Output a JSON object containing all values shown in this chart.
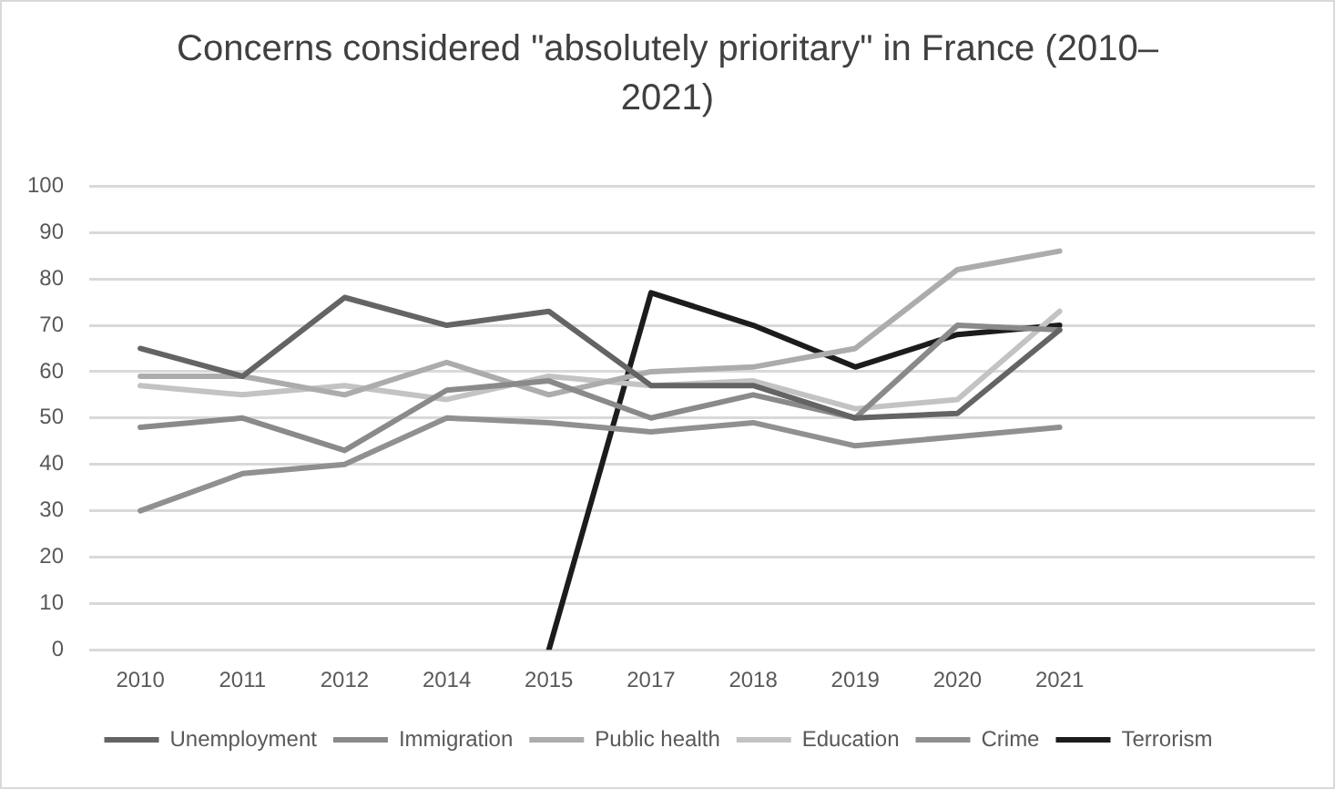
{
  "chart_data": {
    "type": "line",
    "title": "Concerns considered \"absolutely prioritary\" in France (2010–2021)",
    "categories": [
      "2010",
      "2011",
      "2012",
      "2014",
      "2015",
      "2017",
      "2018",
      "2019",
      "2020",
      "2021",
      null,
      null
    ],
    "series": [
      {
        "name": "Unemployment",
        "color": "#646464",
        "values": [
          65,
          59,
          76,
          70,
          73,
          57,
          57,
          50,
          51,
          69,
          null,
          null
        ]
      },
      {
        "name": "Immigration",
        "color": "#8a8a8a",
        "values": [
          48,
          50,
          43,
          56,
          58,
          50,
          55,
          50,
          70,
          69,
          null,
          null
        ]
      },
      {
        "name": "Public health",
        "color": "#acacac",
        "values": [
          59,
          59,
          55,
          62,
          55,
          60,
          61,
          65,
          82,
          86,
          null,
          null
        ]
      },
      {
        "name": "Education",
        "color": "#c3c3c3",
        "values": [
          57,
          55,
          57,
          54,
          59,
          57,
          58,
          52,
          54,
          73,
          null,
          null
        ]
      },
      {
        "name": "Crime",
        "color": "#909090",
        "values": [
          30,
          38,
          40,
          50,
          49,
          47,
          49,
          44,
          46,
          48,
          null,
          null
        ]
      },
      {
        "name": "Terrorism",
        "color": "#1c1c1c",
        "values": [
          null,
          null,
          null,
          null,
          0,
          77,
          70,
          61,
          68,
          70,
          null,
          null
        ]
      }
    ],
    "ylim": [
      0,
      100
    ],
    "yticks": [
      0,
      10,
      20,
      30,
      40,
      50,
      60,
      70,
      80,
      90,
      100
    ],
    "grid": "y",
    "legend": "bottom",
    "marker": "none",
    "line_style": "solid"
  }
}
